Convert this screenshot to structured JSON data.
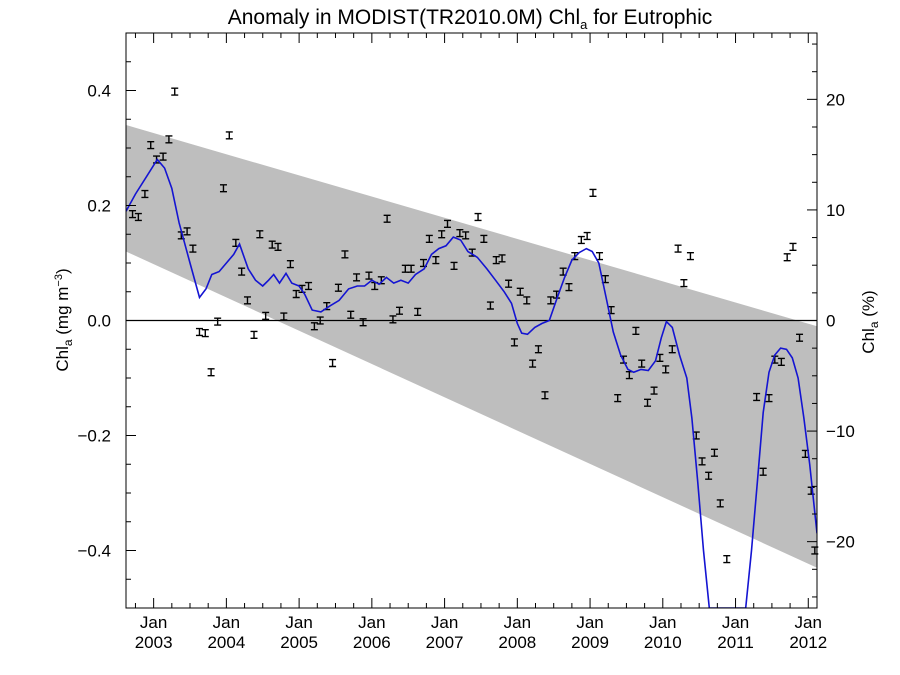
{
  "chart_data": {
    "type": "scatter",
    "title": {
      "prefix": "Anomaly in MODIST(TR2010.0M) Chl",
      "sub": "a",
      "suffix": " for Eutrophic"
    },
    "y_left_label": {
      "prefix": "Chl",
      "sub": "a",
      "mid": " (mg m",
      "sup": "−3",
      "suffix": ")"
    },
    "y_right_label": {
      "prefix": "Chl",
      "sub": "a",
      "suffix": " (%)"
    },
    "xlim": [
      2002.62,
      2012.12
    ],
    "ylim_left": [
      -0.5,
      0.5
    ],
    "ylim_right": [
      -26,
      26
    ],
    "x_ticks": [
      {
        "top": "Jan",
        "bottom": "2003",
        "x": 2003
      },
      {
        "top": "Jan",
        "bottom": "2004",
        "x": 2004
      },
      {
        "top": "Jan",
        "bottom": "2005",
        "x": 2005
      },
      {
        "top": "Jan",
        "bottom": "2006",
        "x": 2006
      },
      {
        "top": "Jan",
        "bottom": "2007",
        "x": 2007
      },
      {
        "top": "Jan",
        "bottom": "2008",
        "x": 2008
      },
      {
        "top": "Jan",
        "bottom": "2009",
        "x": 2009
      },
      {
        "top": "Jan",
        "bottom": "2010",
        "x": 2010
      },
      {
        "top": "Jan",
        "bottom": "2011",
        "x": 2011
      },
      {
        "top": "Jan",
        "bottom": "2012",
        "x": 2012
      }
    ],
    "y_left_ticks": [
      {
        "value": 0.4,
        "label": "0.4"
      },
      {
        "value": 0.2,
        "label": "0.2"
      },
      {
        "value": 0.0,
        "label": "0.0"
      },
      {
        "value": -0.2,
        "label": "−0.2"
      },
      {
        "value": -0.4,
        "label": "−0.4"
      }
    ],
    "y_right_ticks": [
      {
        "value": 20,
        "label": "20"
      },
      {
        "value": 10,
        "label": "10"
      },
      {
        "value": 0,
        "label": "0"
      },
      {
        "value": -10,
        "label": "−10"
      },
      {
        "value": -20,
        "label": "−20"
      }
    ],
    "trend_band": {
      "start": {
        "x": 2002.62,
        "upper": 0.34,
        "lower": 0.12
      },
      "end": {
        "x": 2012.12,
        "upper": -0.01,
        "lower": -0.43
      }
    },
    "zero_line": 0.0,
    "error_half": 0.006,
    "points": [
      {
        "x": 2002.71,
        "y": 0.185
      },
      {
        "x": 2002.79,
        "y": 0.18
      },
      {
        "x": 2002.88,
        "y": 0.22
      },
      {
        "x": 2002.96,
        "y": 0.305
      },
      {
        "x": 2003.04,
        "y": 0.28
      },
      {
        "x": 2003.13,
        "y": 0.285
      },
      {
        "x": 2003.21,
        "y": 0.315
      },
      {
        "x": 2003.29,
        "y": 0.398
      },
      {
        "x": 2003.38,
        "y": 0.148
      },
      {
        "x": 2003.46,
        "y": 0.155
      },
      {
        "x": 2003.54,
        "y": 0.125
      },
      {
        "x": 2003.63,
        "y": -0.02
      },
      {
        "x": 2003.71,
        "y": -0.022
      },
      {
        "x": 2003.79,
        "y": -0.09
      },
      {
        "x": 2003.88,
        "y": -0.002
      },
      {
        "x": 2003.96,
        "y": 0.23
      },
      {
        "x": 2004.04,
        "y": 0.322
      },
      {
        "x": 2004.13,
        "y": 0.135
      },
      {
        "x": 2004.21,
        "y": 0.085
      },
      {
        "x": 2004.29,
        "y": 0.035
      },
      {
        "x": 2004.38,
        "y": -0.025
      },
      {
        "x": 2004.46,
        "y": 0.15
      },
      {
        "x": 2004.54,
        "y": 0.008
      },
      {
        "x": 2004.63,
        "y": 0.132
      },
      {
        "x": 2004.71,
        "y": 0.128
      },
      {
        "x": 2004.79,
        "y": 0.007
      },
      {
        "x": 2004.88,
        "y": 0.098
      },
      {
        "x": 2004.96,
        "y": 0.046
      },
      {
        "x": 2005.04,
        "y": 0.055
      },
      {
        "x": 2005.13,
        "y": 0.06
      },
      {
        "x": 2005.21,
        "y": -0.01
      },
      {
        "x": 2005.29,
        "y": 0.0
      },
      {
        "x": 2005.38,
        "y": 0.025
      },
      {
        "x": 2005.46,
        "y": -0.074
      },
      {
        "x": 2005.54,
        "y": 0.057
      },
      {
        "x": 2005.63,
        "y": 0.115
      },
      {
        "x": 2005.71,
        "y": 0.01
      },
      {
        "x": 2005.79,
        "y": 0.075
      },
      {
        "x": 2005.88,
        "y": -0.003
      },
      {
        "x": 2005.96,
        "y": 0.078
      },
      {
        "x": 2006.04,
        "y": 0.06
      },
      {
        "x": 2006.13,
        "y": 0.07
      },
      {
        "x": 2006.21,
        "y": 0.177
      },
      {
        "x": 2006.29,
        "y": 0.002
      },
      {
        "x": 2006.38,
        "y": 0.017
      },
      {
        "x": 2006.46,
        "y": 0.09
      },
      {
        "x": 2006.54,
        "y": 0.09
      },
      {
        "x": 2006.63,
        "y": 0.015
      },
      {
        "x": 2006.71,
        "y": 0.1
      },
      {
        "x": 2006.79,
        "y": 0.142
      },
      {
        "x": 2006.88,
        "y": 0.105
      },
      {
        "x": 2006.96,
        "y": 0.15
      },
      {
        "x": 2007.04,
        "y": 0.168
      },
      {
        "x": 2007.13,
        "y": 0.095
      },
      {
        "x": 2007.21,
        "y": 0.152
      },
      {
        "x": 2007.29,
        "y": 0.148
      },
      {
        "x": 2007.38,
        "y": 0.118
      },
      {
        "x": 2007.46,
        "y": 0.18
      },
      {
        "x": 2007.54,
        "y": 0.142
      },
      {
        "x": 2007.63,
        "y": 0.026
      },
      {
        "x": 2007.71,
        "y": 0.105
      },
      {
        "x": 2007.79,
        "y": 0.108
      },
      {
        "x": 2007.88,
        "y": 0.064
      },
      {
        "x": 2007.96,
        "y": -0.038
      },
      {
        "x": 2008.04,
        "y": 0.05
      },
      {
        "x": 2008.13,
        "y": 0.035
      },
      {
        "x": 2008.21,
        "y": -0.075
      },
      {
        "x": 2008.29,
        "y": -0.05
      },
      {
        "x": 2008.38,
        "y": -0.13
      },
      {
        "x": 2008.46,
        "y": 0.035
      },
      {
        "x": 2008.54,
        "y": 0.045
      },
      {
        "x": 2008.63,
        "y": 0.085
      },
      {
        "x": 2008.71,
        "y": 0.058
      },
      {
        "x": 2008.79,
        "y": 0.112
      },
      {
        "x": 2008.88,
        "y": 0.14
      },
      {
        "x": 2008.96,
        "y": 0.147
      },
      {
        "x": 2009.04,
        "y": 0.222
      },
      {
        "x": 2009.13,
        "y": 0.112
      },
      {
        "x": 2009.21,
        "y": 0.072
      },
      {
        "x": 2009.29,
        "y": 0.018
      },
      {
        "x": 2009.38,
        "y": -0.135
      },
      {
        "x": 2009.46,
        "y": -0.068
      },
      {
        "x": 2009.54,
        "y": -0.095
      },
      {
        "x": 2009.63,
        "y": -0.018
      },
      {
        "x": 2009.71,
        "y": -0.075
      },
      {
        "x": 2009.79,
        "y": -0.143
      },
      {
        "x": 2009.88,
        "y": -0.122
      },
      {
        "x": 2009.96,
        "y": -0.065
      },
      {
        "x": 2010.04,
        "y": -0.085
      },
      {
        "x": 2010.13,
        "y": -0.05
      },
      {
        "x": 2010.21,
        "y": 0.125
      },
      {
        "x": 2010.29,
        "y": 0.065
      },
      {
        "x": 2010.38,
        "y": 0.112
      },
      {
        "x": 2010.46,
        "y": -0.2
      },
      {
        "x": 2010.54,
        "y": -0.245
      },
      {
        "x": 2010.63,
        "y": -0.27
      },
      {
        "x": 2010.71,
        "y": -0.23
      },
      {
        "x": 2010.79,
        "y": -0.318
      },
      {
        "x": 2010.88,
        "y": -0.415
      },
      {
        "x": 2011.29,
        "y": -0.133
      },
      {
        "x": 2011.38,
        "y": -0.263
      },
      {
        "x": 2011.46,
        "y": -0.135
      },
      {
        "x": 2011.54,
        "y": -0.068
      },
      {
        "x": 2011.63,
        "y": -0.072
      },
      {
        "x": 2011.71,
        "y": 0.11
      },
      {
        "x": 2011.79,
        "y": 0.128
      },
      {
        "x": 2011.88,
        "y": -0.03
      },
      {
        "x": 2011.96,
        "y": -0.232
      },
      {
        "x": 2012.04,
        "y": -0.296
      },
      {
        "x": 2012.09,
        "y": -0.4
      }
    ],
    "smooth_line": [
      {
        "x": 2002.62,
        "y": 0.19
      },
      {
        "x": 2002.75,
        "y": 0.22
      },
      {
        "x": 2002.9,
        "y": 0.25
      },
      {
        "x": 2003.05,
        "y": 0.28
      },
      {
        "x": 2003.15,
        "y": 0.265
      },
      {
        "x": 2003.25,
        "y": 0.23
      },
      {
        "x": 2003.35,
        "y": 0.17
      },
      {
        "x": 2003.5,
        "y": 0.1
      },
      {
        "x": 2003.63,
        "y": 0.04
      },
      {
        "x": 2003.72,
        "y": 0.055
      },
      {
        "x": 2003.8,
        "y": 0.08
      },
      {
        "x": 2003.9,
        "y": 0.085
      },
      {
        "x": 2004.0,
        "y": 0.1
      },
      {
        "x": 2004.1,
        "y": 0.115
      },
      {
        "x": 2004.18,
        "y": 0.133
      },
      {
        "x": 2004.3,
        "y": 0.09
      },
      {
        "x": 2004.4,
        "y": 0.07
      },
      {
        "x": 2004.5,
        "y": 0.06
      },
      {
        "x": 2004.58,
        "y": 0.07
      },
      {
        "x": 2004.65,
        "y": 0.08
      },
      {
        "x": 2004.73,
        "y": 0.065
      },
      {
        "x": 2004.82,
        "y": 0.082
      },
      {
        "x": 2004.9,
        "y": 0.065
      },
      {
        "x": 2005.0,
        "y": 0.06
      },
      {
        "x": 2005.08,
        "y": 0.045
      },
      {
        "x": 2005.18,
        "y": 0.018
      },
      {
        "x": 2005.3,
        "y": 0.015
      },
      {
        "x": 2005.42,
        "y": 0.025
      },
      {
        "x": 2005.55,
        "y": 0.035
      },
      {
        "x": 2005.68,
        "y": 0.055
      },
      {
        "x": 2005.8,
        "y": 0.06
      },
      {
        "x": 2005.9,
        "y": 0.06
      },
      {
        "x": 2006.0,
        "y": 0.07
      },
      {
        "x": 2006.1,
        "y": 0.063
      },
      {
        "x": 2006.2,
        "y": 0.075
      },
      {
        "x": 2006.3,
        "y": 0.065
      },
      {
        "x": 2006.4,
        "y": 0.07
      },
      {
        "x": 2006.5,
        "y": 0.065
      },
      {
        "x": 2006.6,
        "y": 0.08
      },
      {
        "x": 2006.72,
        "y": 0.09
      },
      {
        "x": 2006.82,
        "y": 0.115
      },
      {
        "x": 2006.92,
        "y": 0.125
      },
      {
        "x": 2007.02,
        "y": 0.13
      },
      {
        "x": 2007.12,
        "y": 0.145
      },
      {
        "x": 2007.22,
        "y": 0.14
      },
      {
        "x": 2007.32,
        "y": 0.12
      },
      {
        "x": 2007.45,
        "y": 0.11
      },
      {
        "x": 2007.58,
        "y": 0.09
      },
      {
        "x": 2007.7,
        "y": 0.07
      },
      {
        "x": 2007.82,
        "y": 0.05
      },
      {
        "x": 2007.92,
        "y": 0.03
      },
      {
        "x": 2008.0,
        "y": -0.005
      },
      {
        "x": 2008.06,
        "y": -0.022
      },
      {
        "x": 2008.14,
        "y": -0.024
      },
      {
        "x": 2008.24,
        "y": -0.012
      },
      {
        "x": 2008.34,
        "y": -0.005
      },
      {
        "x": 2008.44,
        "y": 0.0
      },
      {
        "x": 2008.55,
        "y": 0.04
      },
      {
        "x": 2008.65,
        "y": 0.075
      },
      {
        "x": 2008.75,
        "y": 0.105
      },
      {
        "x": 2008.85,
        "y": 0.118
      },
      {
        "x": 2008.95,
        "y": 0.125
      },
      {
        "x": 2009.03,
        "y": 0.12
      },
      {
        "x": 2009.12,
        "y": 0.1
      },
      {
        "x": 2009.22,
        "y": 0.04
      },
      {
        "x": 2009.32,
        "y": -0.02
      },
      {
        "x": 2009.42,
        "y": -0.06
      },
      {
        "x": 2009.52,
        "y": -0.085
      },
      {
        "x": 2009.6,
        "y": -0.09
      },
      {
        "x": 2009.7,
        "y": -0.085
      },
      {
        "x": 2009.8,
        "y": -0.087
      },
      {
        "x": 2009.9,
        "y": -0.07
      },
      {
        "x": 2009.98,
        "y": -0.03
      },
      {
        "x": 2010.05,
        "y": -0.002
      },
      {
        "x": 2010.13,
        "y": -0.012
      },
      {
        "x": 2010.23,
        "y": -0.06
      },
      {
        "x": 2010.33,
        "y": -0.1
      },
      {
        "x": 2010.4,
        "y": -0.17
      },
      {
        "x": 2010.48,
        "y": -0.28
      },
      {
        "x": 2010.56,
        "y": -0.4
      },
      {
        "x": 2010.64,
        "y": -0.5
      },
      {
        "x": 2011.14,
        "y": -0.5
      },
      {
        "x": 2011.22,
        "y": -0.4
      },
      {
        "x": 2011.3,
        "y": -0.28
      },
      {
        "x": 2011.38,
        "y": -0.16
      },
      {
        "x": 2011.46,
        "y": -0.09
      },
      {
        "x": 2011.54,
        "y": -0.06
      },
      {
        "x": 2011.62,
        "y": -0.048
      },
      {
        "x": 2011.7,
        "y": -0.05
      },
      {
        "x": 2011.78,
        "y": -0.065
      },
      {
        "x": 2011.86,
        "y": -0.1
      },
      {
        "x": 2011.94,
        "y": -0.17
      },
      {
        "x": 2012.02,
        "y": -0.25
      },
      {
        "x": 2012.12,
        "y": -0.37
      }
    ],
    "colors": {
      "band": "#bebebe",
      "line": "#1414d2",
      "points": "#000000",
      "axes": "#000000"
    }
  }
}
